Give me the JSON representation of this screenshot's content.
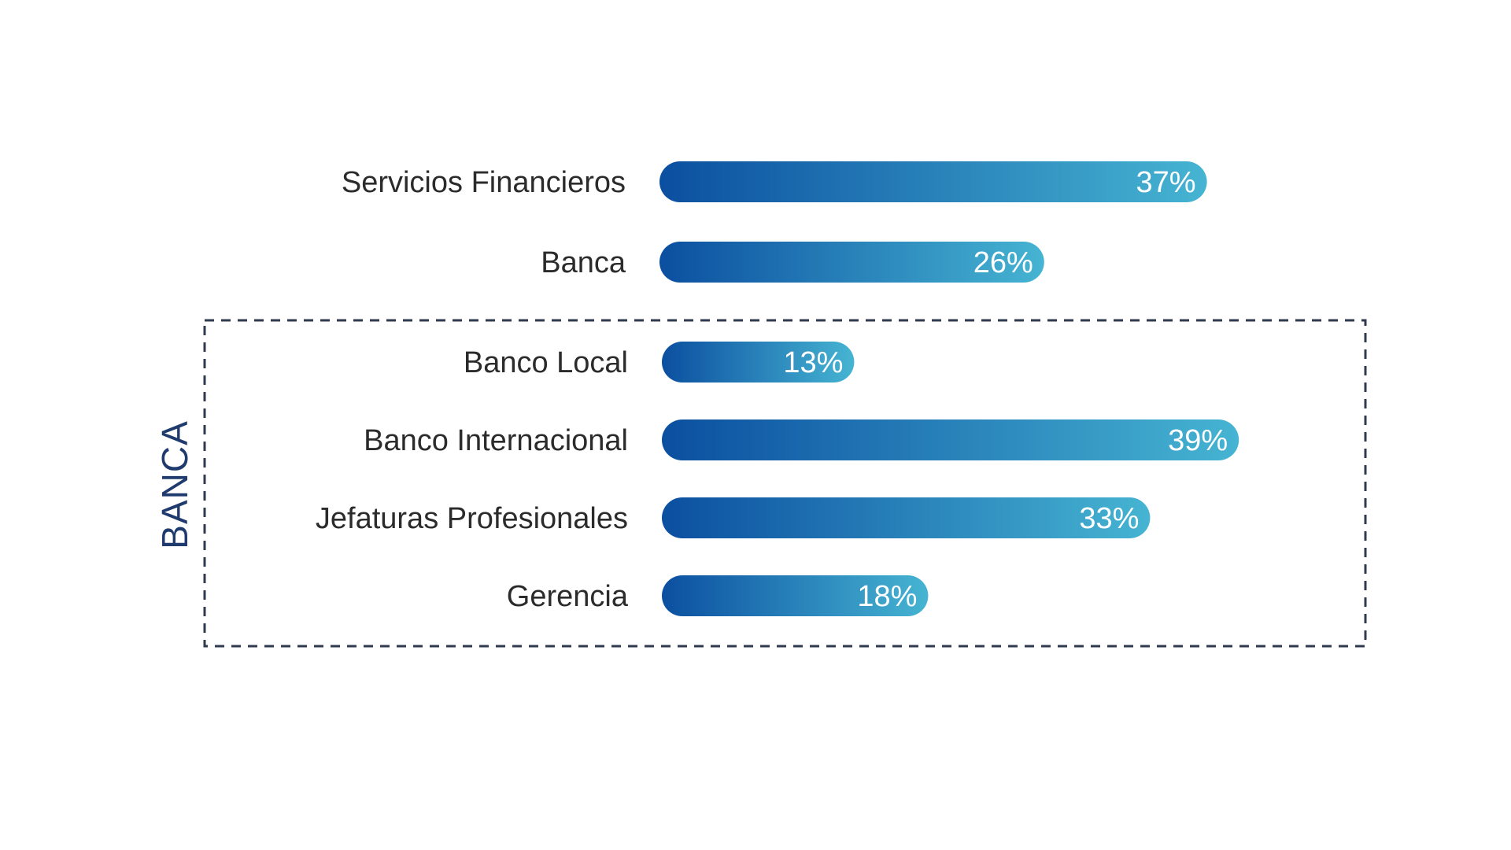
{
  "colors": {
    "bar_start": "#0b4fa0",
    "bar_end": "#46b4d2",
    "text": "#2b2b2b",
    "group_accent": "#1f3b6e",
    "dashed_border": "#2f3a4f"
  },
  "chart_data": {
    "type": "bar",
    "orientation": "horizontal",
    "unit": "%",
    "xlim": [
      0,
      100
    ],
    "grid": false,
    "categories": [
      "Servicios Financieros",
      "Banca",
      "Banco Local",
      "Banco Internacional",
      "Jefaturas Profesionales",
      "Gerencia"
    ],
    "values": [
      37,
      26,
      13,
      39,
      33,
      18
    ],
    "value_labels": [
      "37%",
      "26%",
      "13%",
      "39%",
      "33%",
      "18%"
    ],
    "groups": [
      {
        "label": "BANCA",
        "members": [
          "Banco Local",
          "Banco Internacional",
          "Jefaturas Profesionales",
          "Gerencia"
        ]
      }
    ]
  }
}
